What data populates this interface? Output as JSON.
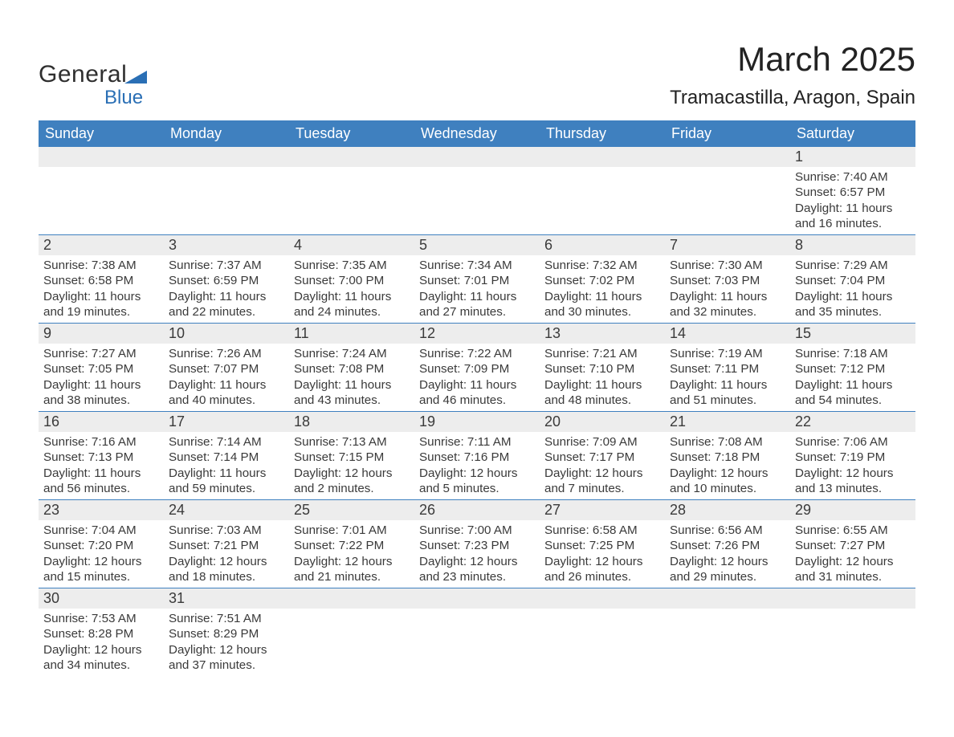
{
  "logo": {
    "text1": "General",
    "text2": "Blue",
    "triangle_color": "#2a6fb5"
  },
  "title": "March 2025",
  "subtitle": "Tramacastilla, Aragon, Spain",
  "colors": {
    "header_bg": "#3f80bf",
    "header_text": "#ffffff",
    "daynum_bg": "#ededed",
    "row_divider": "#3f80bf",
    "body_text": "#3a3a3a",
    "page_bg": "#ffffff"
  },
  "weekdays": [
    "Sunday",
    "Monday",
    "Tuesday",
    "Wednesday",
    "Thursday",
    "Friday",
    "Saturday"
  ],
  "weeks": [
    [
      null,
      null,
      null,
      null,
      null,
      null,
      {
        "n": "1",
        "sunrise": "Sunrise: 7:40 AM",
        "sunset": "Sunset: 6:57 PM",
        "daylight1": "Daylight: 11 hours",
        "daylight2": "and 16 minutes."
      }
    ],
    [
      {
        "n": "2",
        "sunrise": "Sunrise: 7:38 AM",
        "sunset": "Sunset: 6:58 PM",
        "daylight1": "Daylight: 11 hours",
        "daylight2": "and 19 minutes."
      },
      {
        "n": "3",
        "sunrise": "Sunrise: 7:37 AM",
        "sunset": "Sunset: 6:59 PM",
        "daylight1": "Daylight: 11 hours",
        "daylight2": "and 22 minutes."
      },
      {
        "n": "4",
        "sunrise": "Sunrise: 7:35 AM",
        "sunset": "Sunset: 7:00 PM",
        "daylight1": "Daylight: 11 hours",
        "daylight2": "and 24 minutes."
      },
      {
        "n": "5",
        "sunrise": "Sunrise: 7:34 AM",
        "sunset": "Sunset: 7:01 PM",
        "daylight1": "Daylight: 11 hours",
        "daylight2": "and 27 minutes."
      },
      {
        "n": "6",
        "sunrise": "Sunrise: 7:32 AM",
        "sunset": "Sunset: 7:02 PM",
        "daylight1": "Daylight: 11 hours",
        "daylight2": "and 30 minutes."
      },
      {
        "n": "7",
        "sunrise": "Sunrise: 7:30 AM",
        "sunset": "Sunset: 7:03 PM",
        "daylight1": "Daylight: 11 hours",
        "daylight2": "and 32 minutes."
      },
      {
        "n": "8",
        "sunrise": "Sunrise: 7:29 AM",
        "sunset": "Sunset: 7:04 PM",
        "daylight1": "Daylight: 11 hours",
        "daylight2": "and 35 minutes."
      }
    ],
    [
      {
        "n": "9",
        "sunrise": "Sunrise: 7:27 AM",
        "sunset": "Sunset: 7:05 PM",
        "daylight1": "Daylight: 11 hours",
        "daylight2": "and 38 minutes."
      },
      {
        "n": "10",
        "sunrise": "Sunrise: 7:26 AM",
        "sunset": "Sunset: 7:07 PM",
        "daylight1": "Daylight: 11 hours",
        "daylight2": "and 40 minutes."
      },
      {
        "n": "11",
        "sunrise": "Sunrise: 7:24 AM",
        "sunset": "Sunset: 7:08 PM",
        "daylight1": "Daylight: 11 hours",
        "daylight2": "and 43 minutes."
      },
      {
        "n": "12",
        "sunrise": "Sunrise: 7:22 AM",
        "sunset": "Sunset: 7:09 PM",
        "daylight1": "Daylight: 11 hours",
        "daylight2": "and 46 minutes."
      },
      {
        "n": "13",
        "sunrise": "Sunrise: 7:21 AM",
        "sunset": "Sunset: 7:10 PM",
        "daylight1": "Daylight: 11 hours",
        "daylight2": "and 48 minutes."
      },
      {
        "n": "14",
        "sunrise": "Sunrise: 7:19 AM",
        "sunset": "Sunset: 7:11 PM",
        "daylight1": "Daylight: 11 hours",
        "daylight2": "and 51 minutes."
      },
      {
        "n": "15",
        "sunrise": "Sunrise: 7:18 AM",
        "sunset": "Sunset: 7:12 PM",
        "daylight1": "Daylight: 11 hours",
        "daylight2": "and 54 minutes."
      }
    ],
    [
      {
        "n": "16",
        "sunrise": "Sunrise: 7:16 AM",
        "sunset": "Sunset: 7:13 PM",
        "daylight1": "Daylight: 11 hours",
        "daylight2": "and 56 minutes."
      },
      {
        "n": "17",
        "sunrise": "Sunrise: 7:14 AM",
        "sunset": "Sunset: 7:14 PM",
        "daylight1": "Daylight: 11 hours",
        "daylight2": "and 59 minutes."
      },
      {
        "n": "18",
        "sunrise": "Sunrise: 7:13 AM",
        "sunset": "Sunset: 7:15 PM",
        "daylight1": "Daylight: 12 hours",
        "daylight2": "and 2 minutes."
      },
      {
        "n": "19",
        "sunrise": "Sunrise: 7:11 AM",
        "sunset": "Sunset: 7:16 PM",
        "daylight1": "Daylight: 12 hours",
        "daylight2": "and 5 minutes."
      },
      {
        "n": "20",
        "sunrise": "Sunrise: 7:09 AM",
        "sunset": "Sunset: 7:17 PM",
        "daylight1": "Daylight: 12 hours",
        "daylight2": "and 7 minutes."
      },
      {
        "n": "21",
        "sunrise": "Sunrise: 7:08 AM",
        "sunset": "Sunset: 7:18 PM",
        "daylight1": "Daylight: 12 hours",
        "daylight2": "and 10 minutes."
      },
      {
        "n": "22",
        "sunrise": "Sunrise: 7:06 AM",
        "sunset": "Sunset: 7:19 PM",
        "daylight1": "Daylight: 12 hours",
        "daylight2": "and 13 minutes."
      }
    ],
    [
      {
        "n": "23",
        "sunrise": "Sunrise: 7:04 AM",
        "sunset": "Sunset: 7:20 PM",
        "daylight1": "Daylight: 12 hours",
        "daylight2": "and 15 minutes."
      },
      {
        "n": "24",
        "sunrise": "Sunrise: 7:03 AM",
        "sunset": "Sunset: 7:21 PM",
        "daylight1": "Daylight: 12 hours",
        "daylight2": "and 18 minutes."
      },
      {
        "n": "25",
        "sunrise": "Sunrise: 7:01 AM",
        "sunset": "Sunset: 7:22 PM",
        "daylight1": "Daylight: 12 hours",
        "daylight2": "and 21 minutes."
      },
      {
        "n": "26",
        "sunrise": "Sunrise: 7:00 AM",
        "sunset": "Sunset: 7:23 PM",
        "daylight1": "Daylight: 12 hours",
        "daylight2": "and 23 minutes."
      },
      {
        "n": "27",
        "sunrise": "Sunrise: 6:58 AM",
        "sunset": "Sunset: 7:25 PM",
        "daylight1": "Daylight: 12 hours",
        "daylight2": "and 26 minutes."
      },
      {
        "n": "28",
        "sunrise": "Sunrise: 6:56 AM",
        "sunset": "Sunset: 7:26 PM",
        "daylight1": "Daylight: 12 hours",
        "daylight2": "and 29 minutes."
      },
      {
        "n": "29",
        "sunrise": "Sunrise: 6:55 AM",
        "sunset": "Sunset: 7:27 PM",
        "daylight1": "Daylight: 12 hours",
        "daylight2": "and 31 minutes."
      }
    ],
    [
      {
        "n": "30",
        "sunrise": "Sunrise: 7:53 AM",
        "sunset": "Sunset: 8:28 PM",
        "daylight1": "Daylight: 12 hours",
        "daylight2": "and 34 minutes."
      },
      {
        "n": "31",
        "sunrise": "Sunrise: 7:51 AM",
        "sunset": "Sunset: 8:29 PM",
        "daylight1": "Daylight: 12 hours",
        "daylight2": "and 37 minutes."
      },
      null,
      null,
      null,
      null,
      null
    ]
  ]
}
